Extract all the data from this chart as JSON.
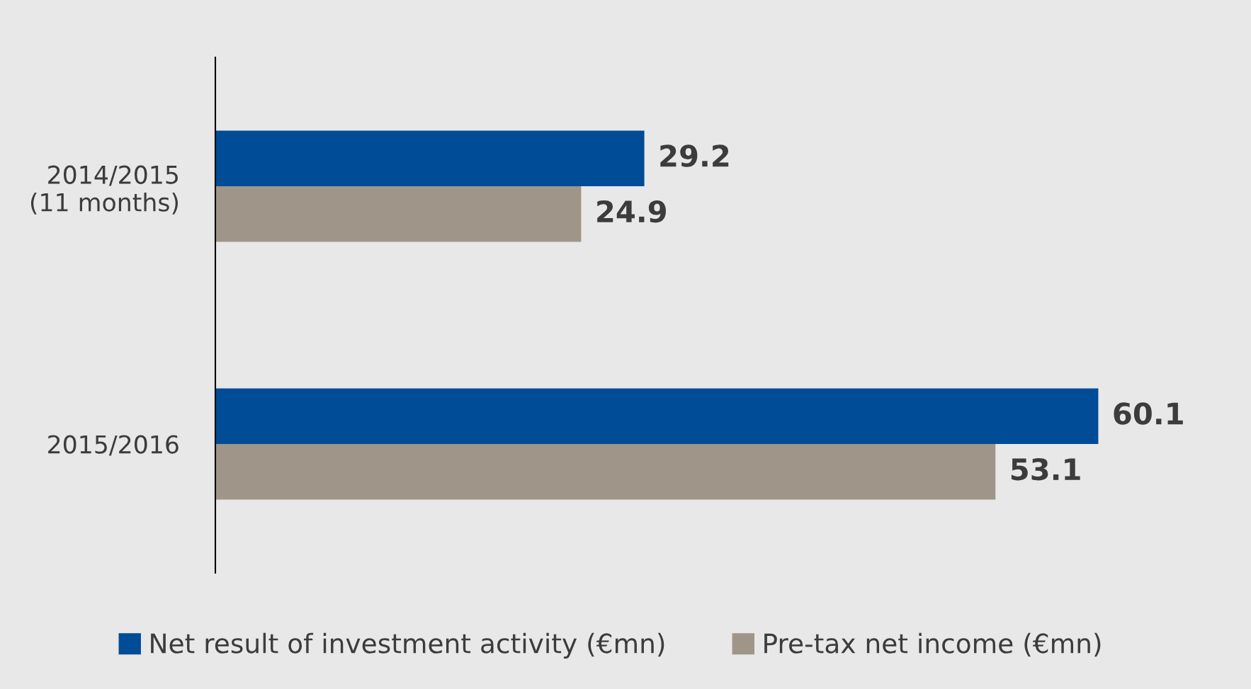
{
  "chart_data": {
    "type": "bar",
    "orientation": "horizontal",
    "categories": [
      "2014/2015\n(11 months)",
      "2015/2016"
    ],
    "series": [
      {
        "name": "Net result of investment activity (€mn)",
        "color": "#004c97",
        "values": [
          29.2,
          60.1
        ]
      },
      {
        "name": "Pre-tax net income (€mn)",
        "color": "#a09589",
        "values": [
          24.9,
          53.1
        ]
      }
    ],
    "data_labels": true,
    "legend": "bottom",
    "grid": false,
    "tick_labels": "y"
  }
}
